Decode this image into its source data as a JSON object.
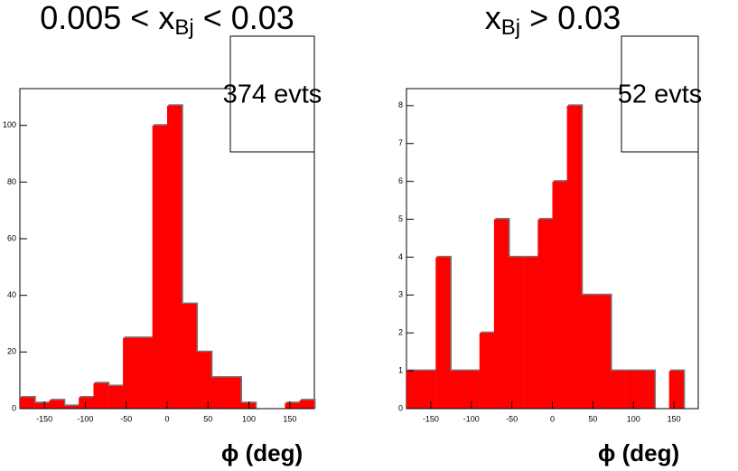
{
  "chart_data": [
    {
      "type": "histogram",
      "title": "0.005 < x",
      "title_sub": "Bj",
      "title_end": " < 0.03",
      "annotation": "374 evts",
      "xlabel": "ϕ (deg)",
      "color": "#ff0000",
      "bins": [
        -180,
        -162,
        -144,
        -126,
        -108,
        -90,
        -72,
        -54,
        -36,
        -18,
        0,
        18,
        36,
        54,
        72,
        90,
        108,
        126,
        144,
        162,
        180
      ],
      "values": [
        4,
        2,
        3,
        1,
        4,
        9,
        8,
        25,
        25,
        100,
        107,
        37,
        20,
        11,
        11,
        2,
        0,
        0,
        2,
        3
      ],
      "xlim": [
        -180,
        180
      ],
      "xticks": [
        -150,
        -100,
        -50,
        0,
        50,
        100,
        150
      ],
      "ylim": [
        0,
        113
      ],
      "yticks": [
        0,
        20,
        40,
        60,
        80,
        100
      ]
    },
    {
      "type": "histogram",
      "title": "x",
      "title_sub": "Bj",
      "title_end": " > 0.03",
      "annotation": "52 evts",
      "xlabel": "ϕ (deg)",
      "color": "#ff0000",
      "bins": [
        -180,
        -162,
        -144,
        -126,
        -108,
        -90,
        -72,
        -54,
        -36,
        -18,
        0,
        18,
        36,
        54,
        72,
        90,
        108,
        126,
        144,
        162,
        180
      ],
      "values": [
        1,
        1,
        4,
        1,
        1,
        2,
        5,
        4,
        4,
        5,
        6,
        8,
        3,
        3,
        1,
        1,
        1,
        0,
        1,
        0
      ],
      "xlim": [
        -180,
        180
      ],
      "xticks": [
        -150,
        -100,
        -50,
        0,
        50,
        100,
        150
      ],
      "ylim": [
        0,
        8.45
      ],
      "yticks": [
        0,
        1,
        2,
        3,
        4,
        5,
        6,
        7,
        8
      ]
    }
  ]
}
